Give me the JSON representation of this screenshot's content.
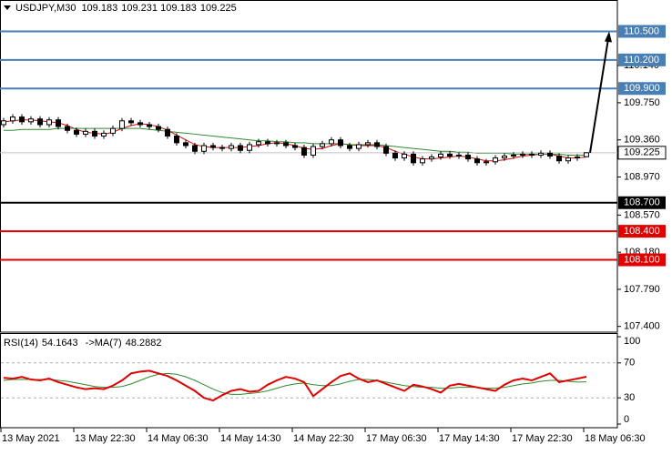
{
  "chart_data": {
    "type": "candlestick",
    "title": "USDJPY,M30",
    "categories": [
      "13 May 2021",
      null,
      null,
      null,
      null,
      null,
      null,
      null,
      "13 May 22:30",
      null,
      null,
      null,
      null,
      null,
      null,
      null,
      "14 May 06:30",
      null,
      null,
      null,
      null,
      null,
      null,
      null,
      "14 May 14:30",
      null,
      null,
      null,
      null,
      null,
      null,
      null,
      "14 May 22:30",
      null,
      null,
      null,
      null,
      null,
      null,
      null,
      "17 May 06:30",
      null,
      null,
      null,
      null,
      null,
      null,
      null,
      "17 May 14:30",
      null,
      null,
      null,
      null,
      null,
      null,
      null,
      "17 May 22:30",
      null,
      null,
      null,
      null,
      null,
      null,
      null,
      "18 May 06:30"
    ],
    "open": [
      109.52,
      109.56,
      109.6,
      109.55,
      109.58,
      109.52,
      109.57,
      109.5,
      109.46,
      109.42,
      109.45,
      109.4,
      109.43,
      109.48,
      109.56,
      109.54,
      109.52,
      109.5,
      109.47,
      109.4,
      109.33,
      109.3,
      109.24,
      109.3,
      109.28,
      109.27,
      109.3,
      109.25,
      109.31,
      109.34,
      109.32,
      109.33,
      109.3,
      109.28,
      109.2,
      109.29,
      109.32,
      109.36,
      109.3,
      109.27,
      109.31,
      109.33,
      109.29,
      109.22,
      109.17,
      109.21,
      109.12,
      109.16,
      109.18,
      109.21,
      109.19,
      109.2,
      109.16,
      109.12,
      109.13,
      109.17,
      109.19,
      109.2,
      109.21,
      109.2,
      109.22,
      109.19,
      109.14,
      109.17,
      109.183
    ],
    "high": [
      109.59,
      109.63,
      109.63,
      109.61,
      109.61,
      109.6,
      109.6,
      109.53,
      109.49,
      109.48,
      109.48,
      109.46,
      109.51,
      109.59,
      109.59,
      109.57,
      109.55,
      109.53,
      109.5,
      109.43,
      109.36,
      109.33,
      109.33,
      109.33,
      109.31,
      109.33,
      109.33,
      109.34,
      109.37,
      109.37,
      109.36,
      109.36,
      109.33,
      109.31,
      109.32,
      109.35,
      109.39,
      109.39,
      109.33,
      109.34,
      109.36,
      109.36,
      109.32,
      109.25,
      109.24,
      109.24,
      109.19,
      109.21,
      109.24,
      109.24,
      109.23,
      109.23,
      109.19,
      109.16,
      109.2,
      109.22,
      109.23,
      109.24,
      109.24,
      109.25,
      109.25,
      109.22,
      109.2,
      109.21,
      109.231
    ],
    "low": [
      109.49,
      109.53,
      109.52,
      109.52,
      109.49,
      109.49,
      109.47,
      109.43,
      109.39,
      109.39,
      109.37,
      109.37,
      109.4,
      109.45,
      109.51,
      109.49,
      109.47,
      109.44,
      109.37,
      109.3,
      109.27,
      109.21,
      109.21,
      109.25,
      109.24,
      109.24,
      109.22,
      109.22,
      109.28,
      109.29,
      109.29,
      109.27,
      109.25,
      109.17,
      109.17,
      109.26,
      109.29,
      109.27,
      109.24,
      109.24,
      109.28,
      109.26,
      109.19,
      109.14,
      109.14,
      109.09,
      109.09,
      109.13,
      109.15,
      109.16,
      109.16,
      109.13,
      109.09,
      109.09,
      109.1,
      109.14,
      109.16,
      109.17,
      109.17,
      109.17,
      109.16,
      109.11,
      109.11,
      109.14,
      109.183
    ],
    "close": [
      109.56,
      109.6,
      109.55,
      109.58,
      109.52,
      109.57,
      109.5,
      109.46,
      109.42,
      109.45,
      109.4,
      109.43,
      109.48,
      109.56,
      109.54,
      109.52,
      109.5,
      109.47,
      109.4,
      109.33,
      109.3,
      109.24,
      109.3,
      109.28,
      109.27,
      109.3,
      109.25,
      109.31,
      109.34,
      109.32,
      109.33,
      109.3,
      109.28,
      109.2,
      109.29,
      109.32,
      109.36,
      109.3,
      109.27,
      109.31,
      109.33,
      109.29,
      109.22,
      109.17,
      109.21,
      109.12,
      109.16,
      109.18,
      109.21,
      109.19,
      109.2,
      109.16,
      109.12,
      109.13,
      109.17,
      109.19,
      109.2,
      109.21,
      109.2,
      109.22,
      109.19,
      109.14,
      109.17,
      109.18,
      109.225
    ],
    "moving_averages": [
      {
        "color": "#e00000",
        "values": [
          109.55,
          109.56,
          109.57,
          109.57,
          109.56,
          109.55,
          109.54,
          109.51,
          109.47,
          109.44,
          109.43,
          109.42,
          109.44,
          109.48,
          109.51,
          109.53,
          109.52,
          109.5,
          109.46,
          109.41,
          109.36,
          109.31,
          109.29,
          109.28,
          109.28,
          109.28,
          109.28,
          109.29,
          109.3,
          109.32,
          109.33,
          109.32,
          109.3,
          109.27,
          109.26,
          109.27,
          109.3,
          109.32,
          109.31,
          109.3,
          109.3,
          109.3,
          109.28,
          109.24,
          109.21,
          109.18,
          109.16,
          109.16,
          109.17,
          109.18,
          109.19,
          109.18,
          109.16,
          109.14,
          109.14,
          109.15,
          109.17,
          109.19,
          109.2,
          109.21,
          109.21,
          109.19,
          109.17,
          109.17,
          109.18
        ]
      },
      {
        "color": "#2e8b2e",
        "values": [
          109.46,
          109.46,
          109.47,
          109.47,
          109.47,
          109.47,
          109.48,
          109.48,
          109.48,
          109.48,
          109.48,
          109.48,
          109.48,
          109.48,
          109.48,
          109.48,
          109.47,
          109.46,
          109.45,
          109.44,
          109.43,
          109.42,
          109.41,
          109.4,
          109.39,
          109.38,
          109.37,
          109.36,
          109.35,
          109.35,
          109.34,
          109.34,
          109.33,
          109.33,
          109.32,
          109.32,
          109.32,
          109.32,
          109.31,
          109.31,
          109.31,
          109.31,
          109.3,
          109.29,
          109.28,
          109.27,
          109.26,
          109.25,
          109.24,
          109.24,
          109.23,
          109.23,
          109.22,
          109.22,
          109.22,
          109.22,
          109.21,
          109.21,
          109.21,
          109.21,
          109.21,
          109.21,
          109.2,
          109.2,
          109.2
        ]
      }
    ],
    "levels": [
      {
        "value": 110.5,
        "label": "110.500",
        "color": "#4a7fb5"
      },
      {
        "value": 110.2,
        "label": "110.200",
        "color": "#4a7fb5"
      },
      {
        "value": 109.9,
        "label": "109.900",
        "color": "#4a7fb5"
      },
      {
        "value": 108.7,
        "label": "108.700",
        "color": "#000000"
      },
      {
        "value": 108.4,
        "label": "108.400",
        "color": "#e00000"
      },
      {
        "value": 108.1,
        "label": "108.100",
        "color": "#e00000"
      }
    ],
    "ylim": [
      107.34,
      110.82
    ],
    "yticks": [
      {
        "value": 110.14,
        "label": "110.140"
      },
      {
        "value": 109.75,
        "label": "109.750"
      },
      {
        "value": 109.36,
        "label": "109.360"
      },
      {
        "value": 108.97,
        "label": "108.970"
      },
      {
        "value": 108.57,
        "label": "108.570"
      },
      {
        "value": 108.18,
        "label": "108.180"
      },
      {
        "value": 107.79,
        "label": "107.790"
      },
      {
        "value": 107.4,
        "label": "107.400"
      }
    ],
    "rsi": {
      "title": "RSI(14)",
      "ma_title": "->MA(7)",
      "color": "#e00000",
      "ma_color": "#2e8b2e",
      "values": [
        53,
        52,
        54,
        51,
        50,
        52,
        48,
        45,
        42,
        40,
        41,
        40,
        44,
        50,
        58,
        60,
        61,
        58,
        55,
        50,
        44,
        38,
        30,
        27,
        33,
        38,
        40,
        37,
        38,
        45,
        50,
        54,
        52,
        48,
        32,
        40,
        48,
        55,
        58,
        52,
        48,
        50,
        46,
        42,
        38,
        45,
        43,
        40,
        36,
        44,
        46,
        44,
        42,
        40,
        38,
        45,
        50,
        52,
        50,
        54,
        58,
        48,
        50,
        52,
        54.1643
      ],
      "ma_values": [
        50,
        51,
        51,
        51,
        51,
        51,
        50,
        49,
        47,
        45,
        43,
        42,
        42,
        43,
        46,
        50,
        54,
        57,
        58,
        57,
        54,
        50,
        45,
        40,
        36,
        34,
        34,
        35,
        36,
        38,
        41,
        44,
        46,
        47,
        45,
        44,
        44,
        46,
        49,
        51,
        51,
        50,
        48,
        46,
        44,
        43,
        42,
        42,
        41,
        41,
        42,
        42,
        42,
        41,
        41,
        42,
        44,
        46,
        47,
        49,
        50,
        50,
        49,
        48,
        48.2882
      ],
      "ylim": [
        0,
        100
      ],
      "yticks": [
        0,
        30,
        70,
        100
      ],
      "levels": [
        30,
        70
      ]
    }
  }
}
